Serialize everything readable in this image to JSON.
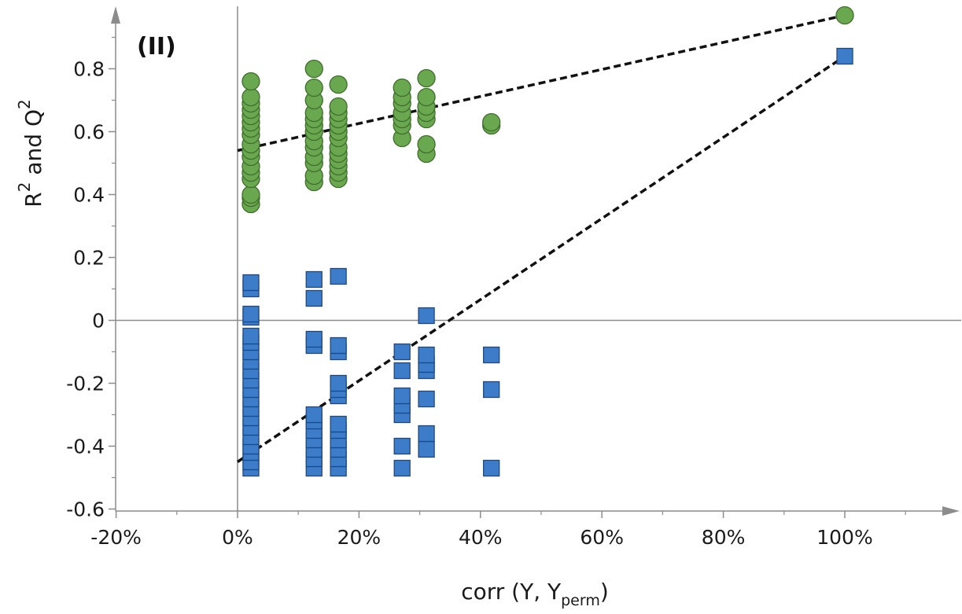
{
  "chart_data": {
    "type": "scatter",
    "panel_label": "(II)",
    "xlabel": {
      "main": "corr (Y, Y",
      "sub": "perm",
      "tail": ")"
    },
    "ylabel": {
      "r": "R",
      "r_sup": "2",
      "mid": " and Q",
      "q_sup": "2"
    },
    "xlim": [
      -0.2,
      1.18
    ],
    "ylim": [
      -0.6,
      0.98
    ],
    "x_ticks": [
      {
        "value": -0.2,
        "label": "-20%"
      },
      {
        "value": 0.0,
        "label": "0%"
      },
      {
        "value": 0.2,
        "label": "20%"
      },
      {
        "value": 0.4,
        "label": "40%"
      },
      {
        "value": 0.6,
        "label": "60%"
      },
      {
        "value": 0.8,
        "label": "80%"
      },
      {
        "value": 1.0,
        "label": "100%"
      }
    ],
    "y_ticks": [
      {
        "value": -0.6,
        "label": "-0.6"
      },
      {
        "value": -0.4,
        "label": "-0.4"
      },
      {
        "value": -0.2,
        "label": "-0.2"
      },
      {
        "value": 0.0,
        "label": "0"
      },
      {
        "value": 0.2,
        "label": "0.2"
      },
      {
        "value": 0.4,
        "label": "0.4"
      },
      {
        "value": 0.6,
        "label": "0.6"
      },
      {
        "value": 0.8,
        "label": "0.8"
      }
    ],
    "colors": {
      "r2": "#6aa84f",
      "r2_edge": "#3f6e2c",
      "q2": "#3d7cc9",
      "q2_edge": "#1f4a80",
      "axis": "#8c8c8c",
      "regression": "#111111"
    },
    "series": [
      {
        "marker": "circle",
        "points": [
          [
            0.022,
            0.37
          ],
          [
            0.022,
            0.39
          ],
          [
            0.022,
            0.4
          ],
          [
            0.022,
            0.45
          ],
          [
            0.022,
            0.47
          ],
          [
            0.022,
            0.49
          ],
          [
            0.022,
            0.52
          ],
          [
            0.022,
            0.54
          ],
          [
            0.022,
            0.56
          ],
          [
            0.022,
            0.59
          ],
          [
            0.022,
            0.61
          ],
          [
            0.022,
            0.63
          ],
          [
            0.022,
            0.65
          ],
          [
            0.022,
            0.67
          ],
          [
            0.022,
            0.69
          ],
          [
            0.022,
            0.71
          ],
          [
            0.022,
            0.76
          ],
          [
            0.126,
            0.44
          ],
          [
            0.126,
            0.46
          ],
          [
            0.126,
            0.5
          ],
          [
            0.126,
            0.52
          ],
          [
            0.126,
            0.55
          ],
          [
            0.126,
            0.57
          ],
          [
            0.126,
            0.6
          ],
          [
            0.126,
            0.62
          ],
          [
            0.126,
            0.64
          ],
          [
            0.126,
            0.66
          ],
          [
            0.126,
            0.7
          ],
          [
            0.126,
            0.74
          ],
          [
            0.126,
            0.8
          ],
          [
            0.166,
            0.45
          ],
          [
            0.166,
            0.47
          ],
          [
            0.166,
            0.49
          ],
          [
            0.166,
            0.51
          ],
          [
            0.166,
            0.53
          ],
          [
            0.166,
            0.55
          ],
          [
            0.166,
            0.58
          ],
          [
            0.166,
            0.6
          ],
          [
            0.166,
            0.62
          ],
          [
            0.166,
            0.64
          ],
          [
            0.166,
            0.66
          ],
          [
            0.166,
            0.68
          ],
          [
            0.166,
            0.75
          ],
          [
            0.271,
            0.58
          ],
          [
            0.271,
            0.62
          ],
          [
            0.271,
            0.64
          ],
          [
            0.271,
            0.66
          ],
          [
            0.271,
            0.69
          ],
          [
            0.271,
            0.71
          ],
          [
            0.271,
            0.74
          ],
          [
            0.311,
            0.53
          ],
          [
            0.311,
            0.56
          ],
          [
            0.311,
            0.64
          ],
          [
            0.311,
            0.66
          ],
          [
            0.311,
            0.68
          ],
          [
            0.311,
            0.71
          ],
          [
            0.311,
            0.77
          ],
          [
            0.418,
            0.62
          ],
          [
            0.418,
            0.63
          ],
          [
            1.0,
            0.97
          ]
        ]
      },
      {
        "marker": "square",
        "points": [
          [
            0.022,
            -0.47
          ],
          [
            0.022,
            -0.45
          ],
          [
            0.022,
            -0.42
          ],
          [
            0.022,
            -0.4
          ],
          [
            0.022,
            -0.37
          ],
          [
            0.022,
            -0.34
          ],
          [
            0.022,
            -0.31
          ],
          [
            0.022,
            -0.28
          ],
          [
            0.022,
            -0.25
          ],
          [
            0.022,
            -0.22
          ],
          [
            0.022,
            -0.19
          ],
          [
            0.022,
            -0.16
          ],
          [
            0.022,
            -0.13
          ],
          [
            0.022,
            -0.1
          ],
          [
            0.022,
            -0.07
          ],
          [
            0.022,
            -0.05
          ],
          [
            0.022,
            0.01
          ],
          [
            0.022,
            0.02
          ],
          [
            0.022,
            0.1
          ],
          [
            0.022,
            0.12
          ],
          [
            0.126,
            -0.47
          ],
          [
            0.126,
            -0.44
          ],
          [
            0.126,
            -0.41
          ],
          [
            0.126,
            -0.38
          ],
          [
            0.126,
            -0.35
          ],
          [
            0.126,
            -0.32
          ],
          [
            0.126,
            -0.3
          ],
          [
            0.126,
            -0.08
          ],
          [
            0.126,
            -0.06
          ],
          [
            0.126,
            0.07
          ],
          [
            0.126,
            0.13
          ],
          [
            0.166,
            -0.47
          ],
          [
            0.166,
            -0.44
          ],
          [
            0.166,
            -0.41
          ],
          [
            0.166,
            -0.38
          ],
          [
            0.166,
            -0.35
          ],
          [
            0.166,
            -0.33
          ],
          [
            0.166,
            -0.24
          ],
          [
            0.166,
            -0.22
          ],
          [
            0.166,
            -0.2
          ],
          [
            0.166,
            -0.1
          ],
          [
            0.166,
            -0.08
          ],
          [
            0.166,
            0.14
          ],
          [
            0.271,
            -0.47
          ],
          [
            0.271,
            -0.4
          ],
          [
            0.271,
            -0.3
          ],
          [
            0.271,
            -0.27
          ],
          [
            0.271,
            -0.24
          ],
          [
            0.271,
            -0.16
          ],
          [
            0.271,
            -0.1
          ],
          [
            0.311,
            -0.41
          ],
          [
            0.311,
            -0.36
          ],
          [
            0.311,
            -0.25
          ],
          [
            0.311,
            -0.16
          ],
          [
            0.311,
            -0.14
          ],
          [
            0.311,
            -0.11
          ],
          [
            0.311,
            0.015
          ],
          [
            0.418,
            -0.47
          ],
          [
            0.418,
            -0.22
          ],
          [
            0.418,
            -0.11
          ],
          [
            1.0,
            0.84
          ]
        ]
      }
    ],
    "regression_lines": [
      {
        "from": [
          0.0,
          0.54
        ],
        "to": [
          1.0,
          0.97
        ]
      },
      {
        "from": [
          0.0,
          -0.45
        ],
        "to": [
          1.0,
          0.84
        ]
      }
    ]
  }
}
